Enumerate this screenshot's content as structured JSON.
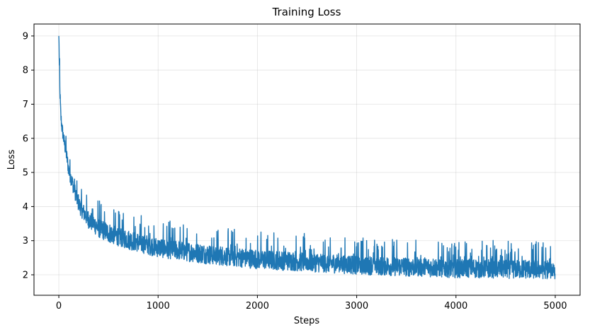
{
  "chart_data": {
    "type": "line",
    "title": "Training Loss",
    "xlabel": "Steps",
    "ylabel": "Loss",
    "xlim": [
      -250,
      5250
    ],
    "ylim": [
      1.4,
      9.35
    ],
    "xticks": [
      0,
      1000,
      2000,
      3000,
      4000,
      5000
    ],
    "yticks": [
      2,
      3,
      4,
      5,
      6,
      7,
      8,
      9
    ],
    "grid": true,
    "line_color": "#1f77b4",
    "series": [
      {
        "points": [
          {
            "x": 0,
            "y": 9.0
          },
          {
            "x": 10,
            "y": 7.4
          },
          {
            "x": 20,
            "y": 6.6
          },
          {
            "x": 30,
            "y": 6.3
          },
          {
            "x": 50,
            "y": 5.9
          },
          {
            "x": 75,
            "y": 5.5
          },
          {
            "x": 100,
            "y": 5.0
          },
          {
            "x": 150,
            "y": 4.5
          },
          {
            "x": 200,
            "y": 4.0
          },
          {
            "x": 250,
            "y": 3.75
          },
          {
            "x": 300,
            "y": 3.55
          },
          {
            "x": 400,
            "y": 3.3
          },
          {
            "x": 500,
            "y": 3.15
          },
          {
            "x": 700,
            "y": 2.95
          },
          {
            "x": 1000,
            "y": 2.72
          },
          {
            "x": 1500,
            "y": 2.52
          },
          {
            "x": 2000,
            "y": 2.38
          },
          {
            "x": 2500,
            "y": 2.3
          },
          {
            "x": 3000,
            "y": 2.22
          },
          {
            "x": 3500,
            "y": 2.16
          },
          {
            "x": 4000,
            "y": 2.12
          },
          {
            "x": 4500,
            "y": 2.1
          },
          {
            "x": 5000,
            "y": 2.08
          }
        ]
      }
    ]
  }
}
